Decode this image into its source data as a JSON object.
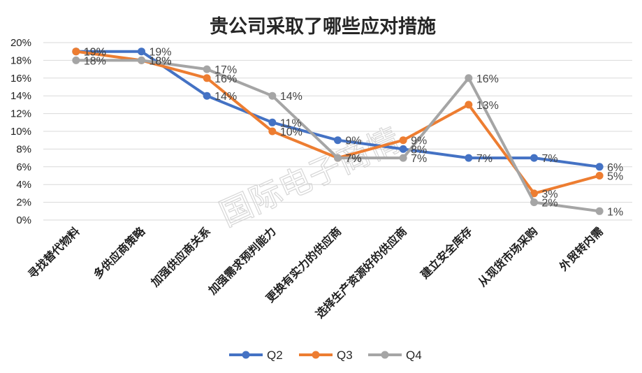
{
  "chart_data": {
    "type": "line",
    "title": "贵公司采取了哪些应对措施",
    "categories": [
      "寻找替代物料",
      "多供应商策略",
      "加强供应商关系",
      "加强需求预判能力",
      "更换有实力的供应商",
      "选择生产资源好的供应商",
      "建立安全库存",
      "从现货市场采购",
      "外贸转内需"
    ],
    "series": [
      {
        "name": "Q2",
        "color": "#4472C4",
        "values": [
          19,
          19,
          14,
          11,
          9,
          8,
          7,
          7,
          6
        ],
        "labels": [
          "19%",
          "19%",
          "14%",
          "11%",
          "9%",
          "8%",
          "7%",
          "7%",
          "6%"
        ]
      },
      {
        "name": "Q3",
        "color": "#ED7D31",
        "values": [
          19,
          18,
          16,
          10,
          7,
          9,
          13,
          3,
          5
        ],
        "labels": [
          "19%",
          "18%",
          "16%",
          "10%",
          "7%",
          "9%",
          "13%",
          "3%",
          "5%"
        ]
      },
      {
        "name": "Q4",
        "color": "#A5A5A5",
        "values": [
          18,
          18,
          17,
          14,
          7,
          7,
          16,
          2,
          1
        ],
        "labels": [
          "18%",
          "18%",
          "17%",
          "14%",
          "7%",
          "7%",
          "16%",
          "2%",
          "1%"
        ]
      }
    ],
    "yticks": [
      "0%",
      "2%",
      "4%",
      "6%",
      "8%",
      "10%",
      "12%",
      "14%",
      "16%",
      "18%",
      "20%"
    ],
    "ylim": [
      0,
      20
    ],
    "grid": true,
    "legend_position": "bottom"
  },
  "watermark": "国际电子商情"
}
